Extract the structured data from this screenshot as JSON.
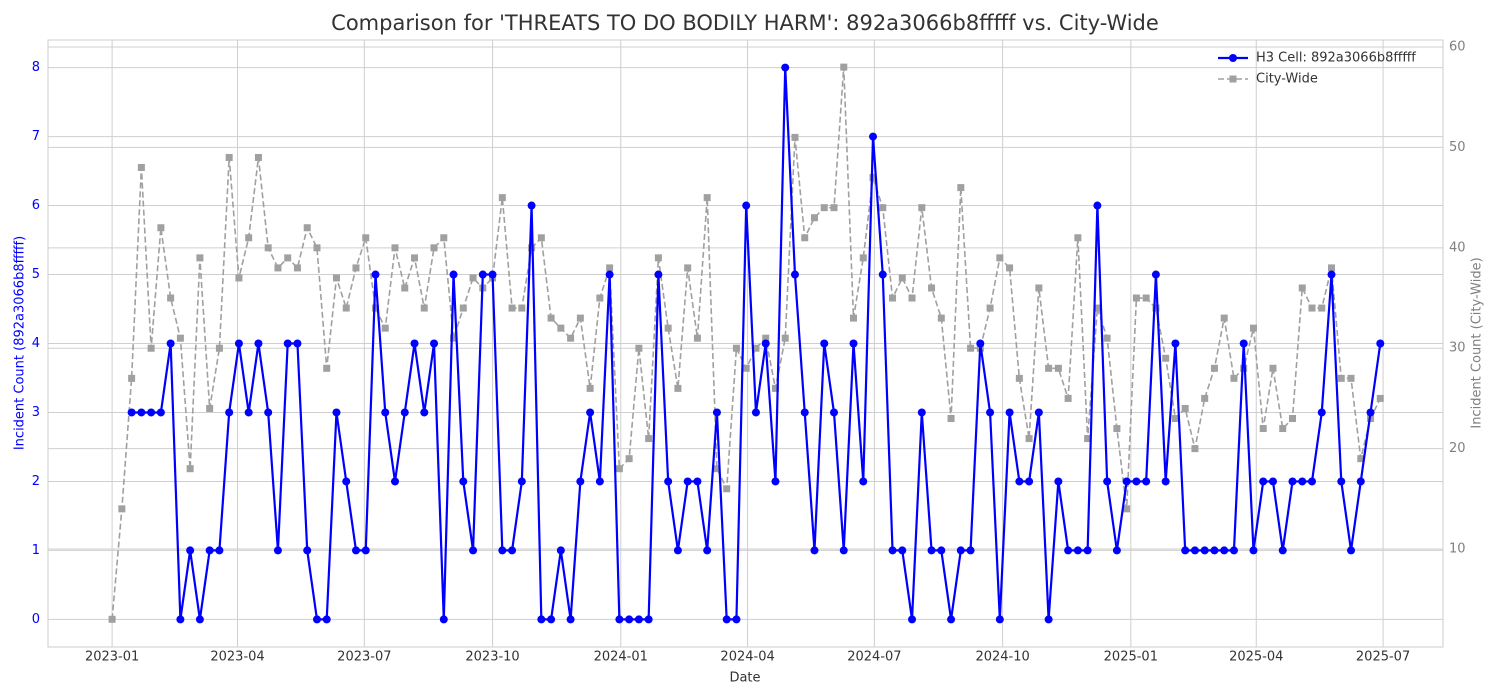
{
  "chart_data": {
    "type": "line",
    "title": "Comparison for 'THREATS TO DO BODILY HARM': 892a3066b8fffff vs. City-Wide",
    "xlabel": "Date",
    "ylabel": "Incident Count (892a3066b8fffff)",
    "y2label": "Incident Count (City-Wide)",
    "x": [
      "2023-01-01",
      "2023-01-08",
      "2023-01-15",
      "2023-01-22",
      "2023-01-29",
      "2023-02-05",
      "2023-02-12",
      "2023-02-19",
      "2023-02-26",
      "2023-03-05",
      "2023-03-12",
      "2023-03-19",
      "2023-03-26",
      "2023-04-02",
      "2023-04-09",
      "2023-04-16",
      "2023-04-23",
      "2023-04-30",
      "2023-05-07",
      "2023-05-14",
      "2023-05-21",
      "2023-05-28",
      "2023-06-04",
      "2023-06-11",
      "2023-06-18",
      "2023-06-25",
      "2023-07-02",
      "2023-07-09",
      "2023-07-16",
      "2023-07-23",
      "2023-07-30",
      "2023-08-06",
      "2023-08-13",
      "2023-08-20",
      "2023-08-27",
      "2023-09-03",
      "2023-09-10",
      "2023-09-17",
      "2023-09-24",
      "2023-10-01",
      "2023-10-08",
      "2023-10-15",
      "2023-10-22",
      "2023-10-29",
      "2023-11-05",
      "2023-11-12",
      "2023-11-19",
      "2023-11-26",
      "2023-12-03",
      "2023-12-10",
      "2023-12-17",
      "2023-12-24",
      "2023-12-31",
      "2024-01-07",
      "2024-01-14",
      "2024-01-21",
      "2024-01-28",
      "2024-02-04",
      "2024-02-11",
      "2024-02-18",
      "2024-02-25",
      "2024-03-03",
      "2024-03-10",
      "2024-03-17",
      "2024-03-24",
      "2024-03-31",
      "2024-04-07",
      "2024-04-14",
      "2024-04-21",
      "2024-04-28",
      "2024-05-05",
      "2024-05-12",
      "2024-05-19",
      "2024-05-26",
      "2024-06-02",
      "2024-06-09",
      "2024-06-16",
      "2024-06-23",
      "2024-06-30",
      "2024-07-07",
      "2024-07-14",
      "2024-07-21",
      "2024-07-28",
      "2024-08-04",
      "2024-08-11",
      "2024-08-18",
      "2024-08-25",
      "2024-09-01",
      "2024-09-08",
      "2024-09-15",
      "2024-09-22",
      "2024-09-29",
      "2024-10-06",
      "2024-10-13",
      "2024-10-20",
      "2024-10-27",
      "2024-11-03",
      "2024-11-10",
      "2024-11-17",
      "2024-11-24",
      "2024-12-01",
      "2024-12-08",
      "2024-12-15",
      "2024-12-22",
      "2024-12-29",
      "2025-01-05",
      "2025-01-12",
      "2025-01-19",
      "2025-01-26",
      "2025-02-02",
      "2025-02-09",
      "2025-02-16",
      "2025-02-23",
      "2025-03-02",
      "2025-03-09",
      "2025-03-16",
      "2025-03-23",
      "2025-03-30",
      "2025-04-06",
      "2025-04-13",
      "2025-04-20",
      "2025-04-27",
      "2025-05-04",
      "2025-05-11",
      "2025-05-18",
      "2025-05-25",
      "2025-06-01",
      "2025-06-08",
      "2025-06-15",
      "2025-06-22",
      "2025-06-29"
    ],
    "series": [
      {
        "name": "H3 Cell: 892a3066b8fffff",
        "color": "#0000ff",
        "values": [
          null,
          null,
          3,
          3,
          3,
          3,
          4,
          0,
          1,
          0,
          1,
          1,
          3,
          4,
          3,
          4,
          3,
          1,
          4,
          4,
          1,
          0,
          0,
          3,
          2,
          1,
          1,
          5,
          3,
          2,
          3,
          4,
          3,
          4,
          0,
          5,
          2,
          1,
          5,
          5,
          1,
          1,
          2,
          6,
          0,
          0,
          1,
          0,
          2,
          3,
          2,
          5,
          0,
          0,
          0,
          0,
          5,
          2,
          1,
          2,
          2,
          1,
          3,
          0,
          0,
          6,
          3,
          4,
          2,
          8,
          5,
          3,
          1,
          4,
          3,
          1,
          4,
          2,
          7,
          5,
          1,
          1,
          0,
          3,
          1,
          1,
          0,
          1,
          1,
          4,
          3,
          0,
          3,
          2,
          2,
          3,
          0,
          2,
          1,
          1,
          1,
          6,
          2,
          1,
          2,
          2,
          2,
          5,
          2,
          4,
          1,
          1,
          1,
          1,
          1,
          1,
          4,
          1,
          2,
          2,
          1,
          2,
          2,
          2,
          3,
          5,
          2,
          1,
          2,
          3,
          4
        ]
      },
      {
        "name": "City-Wide",
        "color": "#a0a0a0",
        "axis": "y2",
        "values": [
          3,
          14,
          27,
          48,
          30,
          42,
          35,
          31,
          18,
          39,
          24,
          30,
          49,
          37,
          41,
          49,
          40,
          38,
          39,
          38,
          42,
          40,
          28,
          37,
          34,
          38,
          41,
          34,
          32,
          40,
          36,
          39,
          34,
          40,
          41,
          31,
          34,
          37,
          36,
          37,
          45,
          34,
          34,
          40,
          41,
          33,
          32,
          31,
          33,
          26,
          35,
          38,
          18,
          19,
          30,
          21,
          39,
          32,
          26,
          38,
          31,
          45,
          18,
          16,
          30,
          28,
          30,
          31,
          26,
          31,
          51,
          41,
          43,
          44,
          44,
          58,
          33,
          39,
          47,
          44,
          35,
          37,
          35,
          44,
          36,
          33,
          23,
          46,
          30,
          30,
          34,
          39,
          38,
          27,
          21,
          36,
          28,
          28,
          25,
          41,
          21,
          34,
          31,
          22,
          14,
          35,
          35,
          34,
          29,
          23,
          24,
          20,
          25,
          28,
          33,
          27,
          28,
          32,
          22,
          28,
          22,
          23,
          36,
          34,
          34,
          38,
          27,
          27,
          19,
          23,
          25
        ]
      }
    ],
    "xlim": [
      "2022-11-16",
      "2025-08-13"
    ],
    "xticks": [
      "2023-01",
      "2023-04",
      "2023-07",
      "2023-10",
      "2024-01",
      "2024-04",
      "2024-07",
      "2024-10",
      "2025-01",
      "2025-04",
      "2025-07"
    ],
    "ylim": [
      -0.4,
      8.4
    ],
    "yticks": [
      0,
      1,
      2,
      3,
      4,
      5,
      6,
      7,
      8
    ],
    "y2lim": [
      0.24,
      60.7
    ],
    "y2ticks": [
      10,
      20,
      30,
      40,
      50,
      60
    ],
    "grid": true,
    "legend": "upper right"
  }
}
